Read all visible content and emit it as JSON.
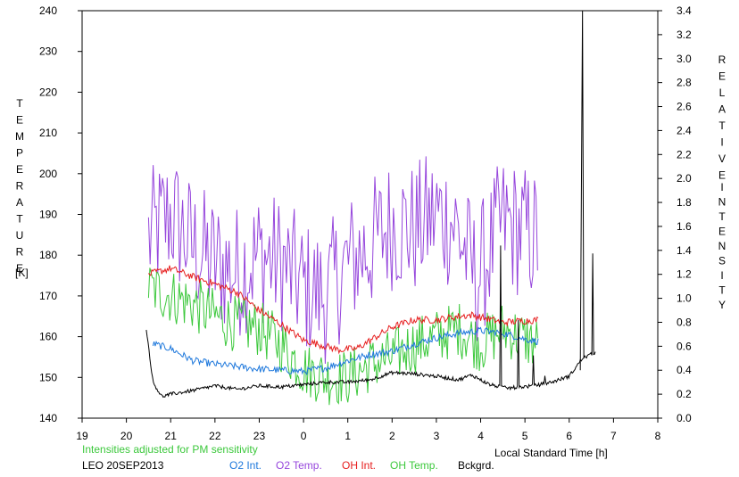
{
  "chart_data": {
    "type": "line",
    "left_axis": {
      "label_letters": [
        "T",
        "E",
        "M",
        "P",
        "E",
        "R",
        "A",
        "T",
        "U",
        "R",
        "E"
      ],
      "unit": "[K]",
      "ticks": [
        "140",
        "150",
        "160",
        "170",
        "180",
        "190",
        "200",
        "210",
        "220",
        "230",
        "240"
      ],
      "ylim": [
        140,
        240
      ]
    },
    "right_axis": {
      "label_letters_1": [
        "R",
        "E",
        "L",
        "A",
        "T",
        "I",
        "V",
        "E"
      ],
      "label_letters_2": [
        "I",
        "N",
        "T",
        "E",
        "N",
        "S",
        "I",
        "T",
        "Y"
      ],
      "ticks": [
        "0.0",
        "0.2",
        "0.4",
        "0.6",
        "0.8",
        "1.0",
        "1.2",
        "1.4",
        "1.6",
        "1.8",
        "2.0",
        "2.2",
        "2.4",
        "2.6",
        "2.8",
        "3.0",
        "3.2",
        "3.4"
      ],
      "ylim": [
        0,
        3.4
      ]
    },
    "x_axis": {
      "label": "Local Standard Time [h]",
      "ticks": [
        "19",
        "20",
        "21",
        "22",
        "23",
        "0",
        "1",
        "2",
        "3",
        "4",
        "5",
        "6",
        "7",
        "8"
      ]
    },
    "footer": {
      "note": "Intensities adjusted for PM sensitivity",
      "station": "LEO 20SEP2013"
    },
    "series": [
      {
        "name": "O2 Int.",
        "color": "#1e78dc",
        "axis": "right",
        "level": [
          [
            20.6,
            0.62
          ],
          [
            21.0,
            0.58
          ],
          [
            21.5,
            0.48
          ],
          [
            22.0,
            0.45
          ],
          [
            22.5,
            0.43
          ],
          [
            23.0,
            0.41
          ],
          [
            23.5,
            0.4
          ],
          [
            24.0,
            0.39
          ],
          [
            24.5,
            0.42
          ],
          [
            25.0,
            0.48
          ],
          [
            25.5,
            0.53
          ],
          [
            26.0,
            0.56
          ],
          [
            26.5,
            0.62
          ],
          [
            27.0,
            0.67
          ],
          [
            27.5,
            0.71
          ],
          [
            28.0,
            0.73
          ],
          [
            28.5,
            0.71
          ],
          [
            29.0,
            0.66
          ],
          [
            29.3,
            0.64
          ]
        ]
      },
      {
        "name": "O2 Temp.",
        "color": "#9646dc",
        "axis": "left",
        "level": [
          [
            20.5,
            184
          ],
          [
            21.0,
            190
          ],
          [
            21.5,
            182
          ],
          [
            22.0,
            178
          ],
          [
            22.5,
            176
          ],
          [
            23.0,
            180
          ],
          [
            23.5,
            178
          ],
          [
            24.0,
            172
          ],
          [
            24.5,
            170
          ],
          [
            25.0,
            178
          ],
          [
            25.5,
            182
          ],
          [
            26.0,
            188
          ],
          [
            26.5,
            186
          ],
          [
            27.0,
            190
          ],
          [
            27.4,
            188
          ],
          [
            27.9,
            174
          ],
          [
            28.5,
            188
          ],
          [
            29.3,
            184
          ]
        ]
      },
      {
        "name": "OH Int.",
        "color": "#e61e1e",
        "axis": "right",
        "level": [
          [
            20.5,
            1.2
          ],
          [
            21.0,
            1.25
          ],
          [
            21.5,
            1.18
          ],
          [
            22.0,
            1.12
          ],
          [
            22.5,
            1.05
          ],
          [
            23.0,
            0.9
          ],
          [
            23.5,
            0.78
          ],
          [
            24.0,
            0.65
          ],
          [
            24.5,
            0.6
          ],
          [
            24.8,
            0.57
          ],
          [
            25.2,
            0.58
          ],
          [
            25.6,
            0.67
          ],
          [
            26.0,
            0.76
          ],
          [
            26.5,
            0.82
          ],
          [
            27.0,
            0.82
          ],
          [
            27.5,
            0.85
          ],
          [
            27.8,
            0.86
          ],
          [
            28.5,
            0.8
          ],
          [
            29.3,
            0.82
          ]
        ]
      },
      {
        "name": "OH Temp.",
        "color": "#3cc83c",
        "axis": "left",
        "level": [
          [
            20.5,
            172
          ],
          [
            21.0,
            170
          ],
          [
            21.5,
            168
          ],
          [
            22.0,
            165
          ],
          [
            22.5,
            163
          ],
          [
            23.0,
            162
          ],
          [
            23.5,
            158
          ],
          [
            24.0,
            152
          ],
          [
            24.5,
            150
          ],
          [
            25.0,
            150
          ],
          [
            25.5,
            153
          ],
          [
            26.0,
            155
          ],
          [
            26.5,
            158
          ],
          [
            27.0,
            160
          ],
          [
            27.5,
            162
          ],
          [
            28.0,
            158
          ],
          [
            28.5,
            162
          ],
          [
            29.3,
            158
          ]
        ]
      },
      {
        "name": "Bckgrd.",
        "color": "#000000",
        "axis": "right",
        "level": [
          [
            20.45,
            0.75
          ],
          [
            20.6,
            0.3
          ],
          [
            20.8,
            0.18
          ],
          [
            21.0,
            0.2
          ],
          [
            21.5,
            0.23
          ],
          [
            22.0,
            0.27
          ],
          [
            22.5,
            0.24
          ],
          [
            23.0,
            0.27
          ],
          [
            23.5,
            0.26
          ],
          [
            24.0,
            0.28
          ],
          [
            24.5,
            0.3
          ],
          [
            25.0,
            0.3
          ],
          [
            25.5,
            0.32
          ],
          [
            26.0,
            0.38
          ],
          [
            26.5,
            0.37
          ],
          [
            27.0,
            0.35
          ],
          [
            27.5,
            0.32
          ],
          [
            27.8,
            0.36
          ],
          [
            28.2,
            0.28
          ],
          [
            28.6,
            0.25
          ],
          [
            29.2,
            0.27
          ],
          [
            29.6,
            0.3
          ],
          [
            30.0,
            0.35
          ],
          [
            30.3,
            0.5
          ],
          [
            30.6,
            0.55
          ]
        ]
      }
    ]
  }
}
